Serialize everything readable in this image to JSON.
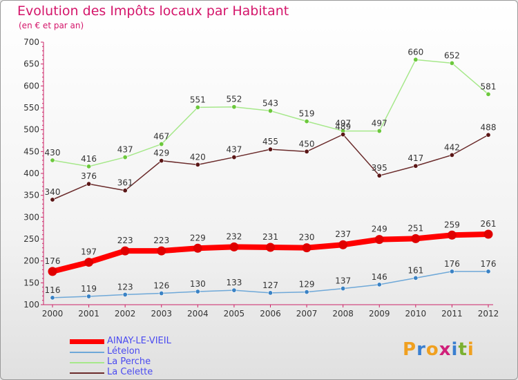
{
  "title": "Evolution des Impôts locaux par Habitant",
  "subtitle": "(en € et par an)",
  "logo": {
    "text": "Proxiti",
    "letter_colors": [
      "#f0a020",
      "#3a7fd0",
      "#f0a020",
      "#d0207a",
      "#3a7fd0",
      "#7ab030",
      "#f0a020"
    ]
  },
  "chart_data": {
    "type": "line",
    "title": "Evolution des Impôts locaux par Habitant",
    "subtitle": "(en € et par an)",
    "x": [
      "2000",
      "2001",
      "2002",
      "2003",
      "2004",
      "2005",
      "2006",
      "2007",
      "2008",
      "2009",
      "2010",
      "2011",
      "2012"
    ],
    "ylim": [
      100,
      700
    ],
    "yticks": [
      100,
      150,
      200,
      250,
      300,
      350,
      400,
      450,
      500,
      550,
      600,
      650,
      700
    ],
    "grid": false,
    "legend": "bottom-left",
    "series": [
      {
        "name": "AINAY-LE-VIEIL",
        "color": "#ff0000",
        "marker_color": "#e00000",
        "emphasis": true,
        "values": [
          176,
          197,
          223,
          223,
          229,
          232,
          231,
          230,
          237,
          249,
          251,
          259,
          261
        ]
      },
      {
        "name": "Lételon",
        "color": "#6ea8d8",
        "marker_color": "#3a82c4",
        "emphasis": false,
        "values": [
          116,
          119,
          123,
          126,
          130,
          133,
          127,
          129,
          137,
          146,
          161,
          176,
          176
        ]
      },
      {
        "name": "La Perche",
        "color": "#a6e88a",
        "marker_color": "#6cc83c",
        "emphasis": false,
        "values": [
          430,
          416,
          437,
          467,
          551,
          552,
          543,
          519,
          497,
          497,
          660,
          652,
          581
        ]
      },
      {
        "name": "La Celette",
        "color": "#6a2a2a",
        "marker_color": "#5a1616",
        "emphasis": false,
        "values": [
          340,
          376,
          361,
          429,
          420,
          437,
          455,
          450,
          489,
          395,
          417,
          442,
          488
        ]
      }
    ],
    "axis_color": "#cc2266"
  }
}
